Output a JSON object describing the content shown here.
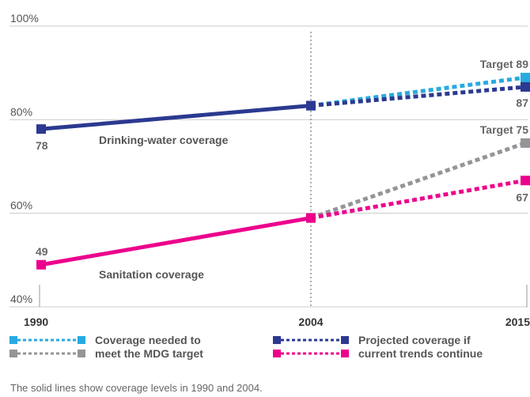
{
  "chart_data": {
    "type": "line",
    "x": [
      1990,
      2004,
      2015
    ],
    "x_tick_labels": [
      "1990",
      "2004",
      "2015"
    ],
    "y_tick_labels": [
      "100%",
      "80%",
      "60%",
      "40%"
    ],
    "ylim": [
      40,
      100
    ],
    "grid": true,
    "series": [
      {
        "key": "water_actual",
        "label": "Drinking-water coverage",
        "points": [
          [
            1990,
            78
          ],
          [
            2004,
            83
          ]
        ],
        "style": "solid",
        "color": "#2b3990"
      },
      {
        "key": "water_target",
        "points": [
          [
            2004,
            83
          ],
          [
            2015,
            89
          ]
        ],
        "style": "dotted",
        "color": "#27aae1"
      },
      {
        "key": "water_projected",
        "points": [
          [
            2004,
            83
          ],
          [
            2015,
            87
          ]
        ],
        "style": "dotted",
        "color": "#2b3990"
      },
      {
        "key": "sanitation_actual",
        "label": "Sanitation coverage",
        "points": [
          [
            1990,
            49
          ],
          [
            2004,
            59
          ]
        ],
        "style": "solid",
        "color": "#ec008c"
      },
      {
        "key": "sanitation_target",
        "points": [
          [
            2004,
            59
          ],
          [
            2015,
            75
          ]
        ],
        "style": "dotted",
        "color": "#939598"
      },
      {
        "key": "sanitation_projected",
        "points": [
          [
            2004,
            59
          ],
          [
            2015,
            67
          ]
        ],
        "style": "dotted",
        "color": "#ec008c"
      }
    ],
    "data_labels": {
      "water_1990": "78",
      "sanitation_1990": "49",
      "water_target_2015": "Target 89",
      "water_projected_2015": "87",
      "sanitation_target_2015": "Target 75",
      "sanitation_projected_2015": "67"
    },
    "legend": [
      {
        "text": [
          "Coverage needed to",
          "meet the MDG target"
        ],
        "colors": [
          "#27aae1",
          "#939598"
        ]
      },
      {
        "text": [
          "Projected coverage if",
          "current trends continue"
        ],
        "colors": [
          "#2b3990",
          "#ec008c"
        ]
      }
    ],
    "legend_position": "bottom",
    "footnote": "The solid lines show coverage levels in 1990 and 2004."
  }
}
